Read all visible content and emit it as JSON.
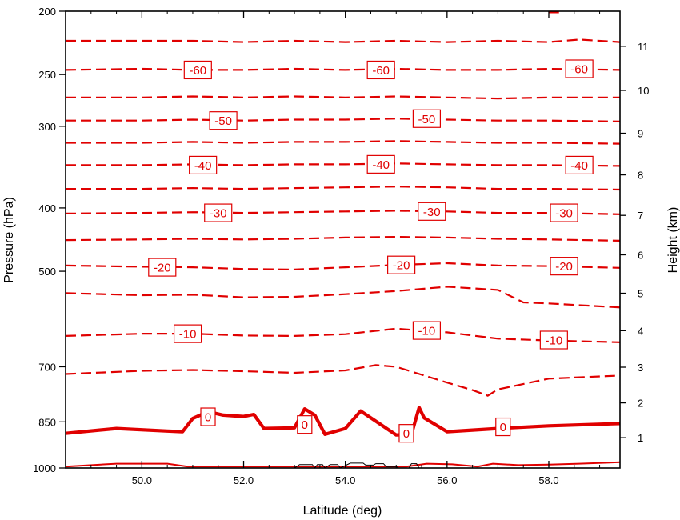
{
  "chart_data": {
    "type": "line",
    "subtype": "vertical cross-section contour plot (temperature isotherms)",
    "xlabel": "Latitude (deg)",
    "ylabel_left": "Pressure (hPa)",
    "ylabel_right": "Height (km)",
    "xlim": [
      48.5,
      59.4
    ],
    "ylim_pressure": [
      1000,
      200
    ],
    "pressure_axis_scale": "log",
    "x_ticks": [
      {
        "value": 50,
        "label": "50.0"
      },
      {
        "value": 52,
        "label": "52.0"
      },
      {
        "value": 54,
        "label": "54.0"
      },
      {
        "value": 56,
        "label": "56.0"
      },
      {
        "value": 58,
        "label": "58.0"
      }
    ],
    "pressure_ticks": [
      {
        "value": 200,
        "label": "200"
      },
      {
        "value": 250,
        "label": "250"
      },
      {
        "value": 300,
        "label": "300"
      },
      {
        "value": 400,
        "label": "400"
      },
      {
        "value": 500,
        "label": "500"
      },
      {
        "value": 700,
        "label": "700"
      },
      {
        "value": 850,
        "label": "850"
      },
      {
        "value": 1000,
        "label": "1000"
      }
    ],
    "height_ticks": [
      {
        "value": 1,
        "label": "1"
      },
      {
        "value": 2,
        "label": "2"
      },
      {
        "value": 3,
        "label": "3"
      },
      {
        "value": 4,
        "label": "4"
      },
      {
        "value": 5,
        "label": "5"
      },
      {
        "value": 6,
        "label": "6"
      },
      {
        "value": 7,
        "label": "7"
      },
      {
        "value": 8,
        "label": "8"
      },
      {
        "value": 9,
        "label": "9"
      },
      {
        "value": 10,
        "label": "10"
      },
      {
        "value": 11,
        "label": "11"
      }
    ],
    "contour_color": "#e00000",
    "terrain_color": "#000000",
    "contours": [
      {
        "level": -65,
        "style": "dashed",
        "points": [
          [
            48.5,
            222
          ],
          [
            50,
            222
          ],
          [
            51,
            222
          ],
          [
            52,
            223
          ],
          [
            53,
            222
          ],
          [
            54,
            223
          ],
          [
            55,
            222
          ],
          [
            56,
            223
          ],
          [
            57,
            222
          ],
          [
            58,
            223
          ],
          [
            58.6,
            221
          ],
          [
            59.4,
            223
          ]
        ]
      },
      {
        "level": -60,
        "style": "dashed",
        "points": [
          [
            48.5,
            246
          ],
          [
            50,
            245
          ],
          [
            51,
            246
          ],
          [
            52,
            246
          ],
          [
            53,
            245
          ],
          [
            54,
            246
          ],
          [
            55,
            245
          ],
          [
            56,
            246
          ],
          [
            57,
            246
          ],
          [
            58,
            245
          ],
          [
            59.4,
            246
          ]
        ]
      },
      {
        "level": -55,
        "style": "dashed",
        "points": [
          [
            48.5,
            271
          ],
          [
            50,
            271
          ],
          [
            51,
            270
          ],
          [
            52,
            271
          ],
          [
            53,
            270
          ],
          [
            54,
            271
          ],
          [
            55,
            270
          ],
          [
            56,
            271
          ],
          [
            57,
            272
          ],
          [
            58,
            271
          ],
          [
            59.4,
            271
          ]
        ]
      },
      {
        "level": -50,
        "style": "dashed",
        "points": [
          [
            48.5,
            294
          ],
          [
            50,
            294
          ],
          [
            51,
            293
          ],
          [
            52,
            294
          ],
          [
            53,
            293
          ],
          [
            54,
            293
          ],
          [
            55,
            292
          ],
          [
            56,
            293
          ],
          [
            57,
            294
          ],
          [
            58,
            294
          ],
          [
            59.4,
            295
          ]
        ]
      },
      {
        "level": -45,
        "style": "dashed",
        "points": [
          [
            48.5,
            318
          ],
          [
            50,
            318
          ],
          [
            51,
            317
          ],
          [
            52,
            318
          ],
          [
            53,
            317
          ],
          [
            54,
            317
          ],
          [
            55,
            316
          ],
          [
            56,
            317
          ],
          [
            57,
            318
          ],
          [
            58,
            318
          ],
          [
            59.4,
            319
          ]
        ]
      },
      {
        "level": -40,
        "style": "dashed",
        "points": [
          [
            48.5,
            344
          ],
          [
            50,
            344
          ],
          [
            51,
            343
          ],
          [
            52,
            344
          ],
          [
            53,
            343
          ],
          [
            54,
            343
          ],
          [
            55,
            342
          ],
          [
            56,
            343
          ],
          [
            57,
            344
          ],
          [
            58,
            344
          ],
          [
            59.4,
            345
          ]
        ]
      },
      {
        "level": -35,
        "style": "dashed",
        "points": [
          [
            48.5,
            374
          ],
          [
            50,
            374
          ],
          [
            51,
            373
          ],
          [
            52,
            374
          ],
          [
            53,
            373
          ],
          [
            54,
            372
          ],
          [
            55,
            371
          ],
          [
            56,
            372
          ],
          [
            57,
            374
          ],
          [
            58,
            374
          ],
          [
            59.4,
            375
          ]
        ]
      },
      {
        "level": -30,
        "style": "dashed",
        "points": [
          [
            48.5,
            408
          ],
          [
            50,
            407
          ],
          [
            51,
            406
          ],
          [
            52,
            407
          ],
          [
            53,
            406
          ],
          [
            54,
            405
          ],
          [
            55,
            404
          ],
          [
            56,
            405
          ],
          [
            57,
            407
          ],
          [
            58,
            407
          ],
          [
            59.4,
            409
          ]
        ]
      },
      {
        "level": -25,
        "style": "dashed",
        "points": [
          [
            48.5,
            448
          ],
          [
            50,
            447
          ],
          [
            51,
            446
          ],
          [
            52,
            447
          ],
          [
            53,
            446
          ],
          [
            54,
            444
          ],
          [
            55,
            443
          ],
          [
            56,
            444
          ],
          [
            57,
            446
          ],
          [
            58,
            447
          ],
          [
            59.4,
            449
          ]
        ]
      },
      {
        "level": -20,
        "style": "dashed",
        "points": [
          [
            48.5,
            490
          ],
          [
            50,
            492
          ],
          [
            51,
            493
          ],
          [
            52,
            496
          ],
          [
            53,
            497
          ],
          [
            54,
            493
          ],
          [
            55,
            489
          ],
          [
            56,
            486
          ],
          [
            57,
            490
          ],
          [
            58,
            491
          ],
          [
            59.4,
            494
          ]
        ]
      },
      {
        "level": -15,
        "style": "dashed",
        "points": [
          [
            48.5,
            540
          ],
          [
            50,
            544
          ],
          [
            51,
            543
          ],
          [
            52,
            548
          ],
          [
            53,
            547
          ],
          [
            54,
            542
          ],
          [
            55,
            536
          ],
          [
            56,
            528
          ],
          [
            57,
            534
          ],
          [
            57.5,
            558
          ],
          [
            58,
            560
          ],
          [
            59.4,
            568
          ]
        ]
      },
      {
        "level": -10,
        "style": "dashed",
        "points": [
          [
            48.5,
            628
          ],
          [
            50,
            623
          ],
          [
            51,
            623
          ],
          [
            52,
            627
          ],
          [
            53,
            628
          ],
          [
            54,
            624
          ],
          [
            55,
            612
          ],
          [
            56,
            620
          ],
          [
            57,
            634
          ],
          [
            58,
            638
          ],
          [
            59.4,
            642
          ]
        ]
      },
      {
        "level": -5,
        "style": "dashed",
        "points": [
          [
            48.5,
            718
          ],
          [
            50,
            710
          ],
          [
            51,
            708
          ],
          [
            52,
            711
          ],
          [
            53,
            715
          ],
          [
            54,
            709
          ],
          [
            54.6,
            696
          ],
          [
            55,
            700
          ],
          [
            56,
            740
          ],
          [
            56.5,
            760
          ],
          [
            56.8,
            775
          ],
          [
            57,
            758
          ],
          [
            58,
            730
          ],
          [
            59.4,
            722
          ]
        ]
      },
      {
        "level": 0,
        "style": "solid-thick",
        "points": [
          [
            48.5,
            885
          ],
          [
            49.5,
            870
          ],
          [
            50.5,
            878
          ],
          [
            50.8,
            880
          ],
          [
            51,
            840
          ],
          [
            51.3,
            820
          ],
          [
            51.6,
            830
          ],
          [
            52,
            834
          ],
          [
            52.2,
            828
          ],
          [
            52.4,
            870
          ],
          [
            53,
            868
          ],
          [
            53.2,
            812
          ],
          [
            53.4,
            830
          ],
          [
            53.6,
            888
          ],
          [
            54,
            870
          ],
          [
            54.3,
            818
          ],
          [
            54.6,
            848
          ],
          [
            55,
            890
          ],
          [
            55.3,
            888
          ],
          [
            55.45,
            808
          ],
          [
            55.55,
            838
          ],
          [
            56,
            880
          ],
          [
            57,
            870
          ],
          [
            58,
            862
          ],
          [
            59.4,
            855
          ]
        ]
      },
      {
        "level": 5,
        "style": "solid-thin",
        "points": [
          [
            48.5,
            995
          ],
          [
            49.5,
            985
          ],
          [
            50.5,
            985
          ],
          [
            50.9,
            995
          ],
          [
            55.2,
            995
          ],
          [
            55.6,
            985
          ],
          [
            56.1,
            987
          ],
          [
            56.6,
            995
          ],
          [
            56.9,
            985
          ],
          [
            57.4,
            990
          ],
          [
            58,
            988
          ],
          [
            58.6,
            985
          ],
          [
            59.4,
            980
          ]
        ]
      }
    ],
    "contour_labels": [
      {
        "text": "-60",
        "x": 51.1,
        "p": 246
      },
      {
        "text": "-60",
        "x": 54.7,
        "p": 246
      },
      {
        "text": "-60",
        "x": 58.6,
        "p": 245
      },
      {
        "text": "-50",
        "x": 51.6,
        "p": 294
      },
      {
        "text": "-50",
        "x": 55.6,
        "p": 292
      },
      {
        "text": "-40",
        "x": 51.2,
        "p": 344
      },
      {
        "text": "-40",
        "x": 54.7,
        "p": 343
      },
      {
        "text": "-40",
        "x": 58.6,
        "p": 344
      },
      {
        "text": "-30",
        "x": 51.5,
        "p": 407
      },
      {
        "text": "-30",
        "x": 55.7,
        "p": 405
      },
      {
        "text": "-30",
        "x": 58.3,
        "p": 407
      },
      {
        "text": "-20",
        "x": 50.4,
        "p": 493
      },
      {
        "text": "-20",
        "x": 55.1,
        "p": 489
      },
      {
        "text": "-20",
        "x": 58.3,
        "p": 491
      },
      {
        "text": "-10",
        "x": 50.9,
        "p": 623
      },
      {
        "text": "-10",
        "x": 55.6,
        "p": 616
      },
      {
        "text": "-10",
        "x": 58.1,
        "p": 637
      },
      {
        "text": "0",
        "x": 51.3,
        "p": 835
      },
      {
        "text": "0",
        "x": 53.2,
        "p": 858
      },
      {
        "text": "0",
        "x": 55.2,
        "p": 885
      },
      {
        "text": "0",
        "x": 57.1,
        "p": 865
      }
    ],
    "terrain": [
      [
        53,
        1000
      ],
      [
        53.1,
        988
      ],
      [
        53.35,
        988
      ],
      [
        53.4,
        1000
      ],
      [
        53.45,
        988
      ],
      [
        53.55,
        988
      ],
      [
        53.6,
        1000
      ],
      [
        53.7,
        988
      ],
      [
        53.85,
        988
      ],
      [
        53.9,
        1000
      ],
      [
        54.1,
        983
      ],
      [
        54.35,
        983
      ],
      [
        54.4,
        990
      ],
      [
        54.55,
        990
      ],
      [
        54.6,
        985
      ],
      [
        54.75,
        985
      ],
      [
        54.8,
        995
      ],
      [
        55,
        995
      ],
      [
        55.05,
        1000
      ],
      [
        55.25,
        1000
      ],
      [
        55.3,
        985
      ],
      [
        55.4,
        985
      ],
      [
        55.45,
        1000
      ]
    ],
    "right_axis_top_tick_marks": true
  }
}
